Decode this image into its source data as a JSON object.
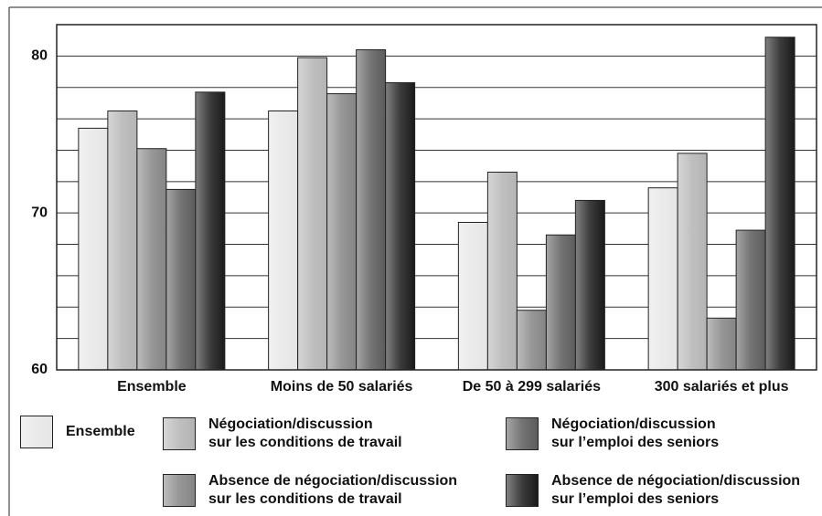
{
  "chart_data": {
    "type": "bar",
    "categories": [
      "Ensemble",
      "Moins de 50 salariés",
      "De 50 à 299 salariés",
      "300 salariés et plus"
    ],
    "series": [
      {
        "name": "Ensemble",
        "color": "#e6e6e6",
        "values": [
          75.4,
          76.5,
          69.4,
          71.6
        ]
      },
      {
        "name": "Négociation/discussion\nsur les conditions de travail",
        "color": "#b4b4b4",
        "values": [
          76.5,
          79.9,
          72.6,
          73.8
        ]
      },
      {
        "name": "Absence de négociation/discussion\nsur les conditions de travail",
        "color": "#858585",
        "values": [
          74.1,
          77.6,
          63.8,
          63.3
        ]
      },
      {
        "name": "Négociation/discussion\nsur l’emploi des seniors",
        "color": "#5c5c5c",
        "values": [
          71.5,
          80.4,
          68.6,
          68.9
        ]
      },
      {
        "name": "Absence de négociation/discussion\nsur l’emploi des seniors",
        "color": "#1a1a1a",
        "values": [
          77.7,
          78.3,
          70.8,
          81.2
        ]
      }
    ],
    "ylim": [
      60,
      82
    ],
    "yticks": [
      60,
      70,
      80
    ],
    "minor_yticks": [
      62,
      64,
      66,
      68,
      72,
      74,
      76,
      78,
      82
    ],
    "grid": true
  }
}
